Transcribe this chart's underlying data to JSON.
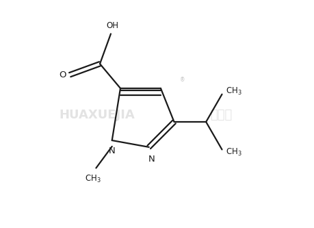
{
  "bg_color": "#ffffff",
  "line_color": "#1a1a1a",
  "line_width": 1.6,
  "watermark1": "HUAXUEJIA",
  "watermark2": "化学加",
  "reg_symbol": "®",
  "label_N": "N",
  "label_OH": "OH",
  "label_O": "O",
  "label_CH3_n": "CH₃",
  "font_size": 8.5,
  "fig_width": 4.6,
  "fig_height": 3.33,
  "dpi": 100,
  "xlim": [
    0,
    9.2
  ],
  "ylim": [
    0,
    6.67
  ]
}
